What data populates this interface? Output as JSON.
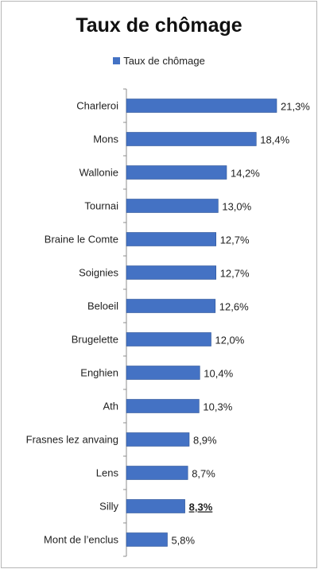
{
  "chart_data": {
    "type": "bar",
    "orientation": "horizontal",
    "title": "Taux de chômage",
    "legend": {
      "position": "top",
      "entries": [
        "Taux de chômage"
      ]
    },
    "categories": [
      "Charleroi",
      "Mons",
      "Wallonie",
      "Tournai",
      "Braine le Comte",
      "Soignies",
      "Beloeil",
      "Brugelette",
      "Enghien",
      "Ath",
      "Frasnes lez anvaing",
      "Lens",
      "Silly",
      "Mont de l’enclus"
    ],
    "series": [
      {
        "name": "Taux de chômage",
        "values": [
          21.3,
          18.4,
          14.2,
          13.0,
          12.7,
          12.7,
          12.6,
          12.0,
          10.4,
          10.3,
          8.9,
          8.7,
          8.3,
          5.8
        ],
        "data_labels": [
          "21,3%",
          "18,4%",
          "14,2%",
          "13,0%",
          "12,7%",
          "12,7%",
          "12,6%",
          "12,0%",
          "10,4%",
          "10,3%",
          "8,9%",
          "8,7%",
          "8,3%",
          "5,8%"
        ],
        "emphasized_labels": [
          "8,3%"
        ]
      }
    ],
    "xlim": [
      0,
      21.3
    ],
    "grid": false,
    "colors": {
      "bar": "#4472c4",
      "bar_edge": "#2f5597",
      "axis": "#8c8c8c"
    }
  }
}
